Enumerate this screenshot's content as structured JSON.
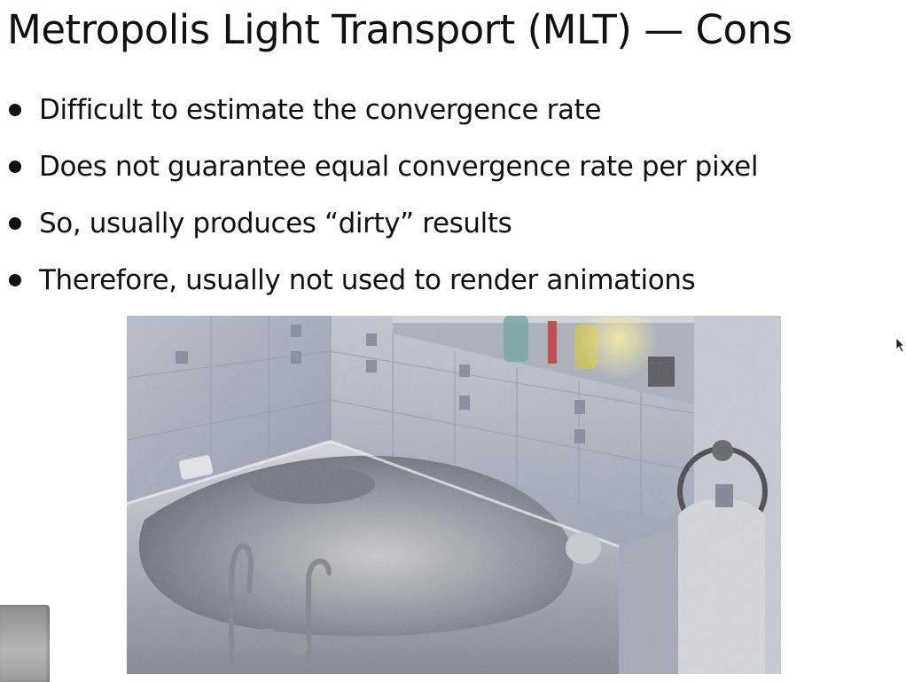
{
  "slide": {
    "title": "Metropolis Light Transport (MLT) — Cons",
    "bullets": [
      "Difficult to estimate the convergence rate",
      "Does not guarantee equal convergence rate per pixel",
      "So, usually produces “dirty” results",
      "Therefore, usually not used to render animations"
    ]
  },
  "image": {
    "subject": "noisy MLT render of a bathroom with a corner bathtub, tiled walls, shelf with bottles and towel ring"
  },
  "colors": {
    "background": "#ffffff",
    "text": "#111111",
    "tile": "#a7afc0",
    "tub": "#c9ccd3"
  }
}
